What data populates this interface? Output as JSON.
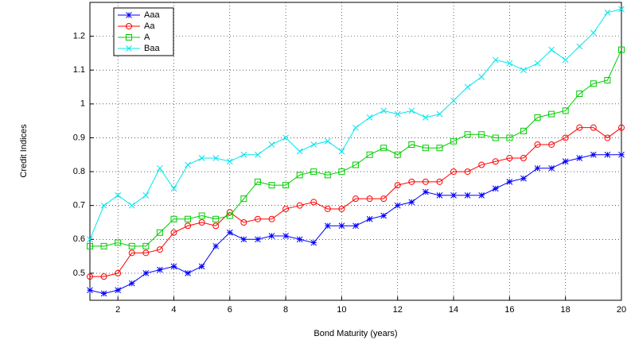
{
  "chart_data": {
    "type": "line",
    "xlabel": "Bond Maturity (years)",
    "ylabel": "Credit Indices",
    "x": [
      1,
      1.5,
      2,
      2.5,
      3,
      3.5,
      4,
      4.5,
      5,
      5.5,
      6,
      6.5,
      7,
      7.5,
      8,
      8.5,
      9,
      9.5,
      10,
      10.5,
      11,
      11.5,
      12,
      12.5,
      13,
      13.5,
      14,
      14.5,
      15,
      15.5,
      16,
      16.5,
      17,
      17.5,
      18,
      18.5,
      19,
      19.5,
      20
    ],
    "series": [
      {
        "name": "Aaa",
        "color": "#0000ff",
        "marker": "star",
        "values": [
          0.45,
          0.44,
          0.45,
          0.47,
          0.5,
          0.51,
          0.52,
          0.5,
          0.52,
          0.58,
          0.62,
          0.6,
          0.6,
          0.61,
          0.61,
          0.6,
          0.59,
          0.64,
          0.64,
          0.64,
          0.66,
          0.67,
          0.7,
          0.71,
          0.74,
          0.73,
          0.73,
          0.73,
          0.73,
          0.75,
          0.77,
          0.78,
          0.81,
          0.81,
          0.83,
          0.84,
          0.85,
          0.85,
          0.85
        ]
      },
      {
        "name": "Aa",
        "color": "#ff0000",
        "marker": "circle",
        "values": [
          0.49,
          0.49,
          0.5,
          0.56,
          0.56,
          0.57,
          0.62,
          0.64,
          0.65,
          0.64,
          0.68,
          0.65,
          0.66,
          0.66,
          0.69,
          0.7,
          0.71,
          0.69,
          0.69,
          0.72,
          0.72,
          0.72,
          0.76,
          0.77,
          0.77,
          0.77,
          0.8,
          0.8,
          0.82,
          0.83,
          0.84,
          0.84,
          0.88,
          0.88,
          0.9,
          0.93,
          0.93,
          0.9,
          0.93
        ]
      },
      {
        "name": "A",
        "color": "#00cc00",
        "marker": "square",
        "values": [
          0.58,
          0.58,
          0.59,
          0.58,
          0.58,
          0.62,
          0.66,
          0.66,
          0.67,
          0.66,
          0.67,
          0.72,
          0.77,
          0.76,
          0.76,
          0.79,
          0.8,
          0.79,
          0.8,
          0.82,
          0.85,
          0.87,
          0.85,
          0.88,
          0.87,
          0.87,
          0.89,
          0.91,
          0.91,
          0.9,
          0.9,
          0.92,
          0.96,
          0.97,
          0.98,
          1.03,
          1.06,
          1.07,
          1.16
        ]
      },
      {
        "name": "Baa",
        "color": "#00e5ee",
        "marker": "x",
        "values": [
          0.6,
          0.7,
          0.73,
          0.7,
          0.73,
          0.81,
          0.75,
          0.82,
          0.84,
          0.84,
          0.83,
          0.85,
          0.85,
          0.88,
          0.9,
          0.86,
          0.88,
          0.89,
          0.86,
          0.93,
          0.96,
          0.98,
          0.97,
          0.98,
          0.96,
          0.97,
          1.01,
          1.05,
          1.08,
          1.13,
          1.12,
          1.1,
          1.12,
          1.16,
          1.13,
          1.17,
          1.21,
          1.27,
          1.28
        ]
      }
    ],
    "xlim": [
      1,
      20
    ],
    "ylim": [
      0.42,
      1.3
    ],
    "xticks": [
      2,
      4,
      6,
      8,
      10,
      12,
      14,
      16,
      18,
      20
    ],
    "yticks": [
      0.5,
      0.6,
      0.7,
      0.8,
      0.9,
      1,
      1.1,
      1.2
    ],
    "grid": true,
    "legend": "upper-left"
  }
}
